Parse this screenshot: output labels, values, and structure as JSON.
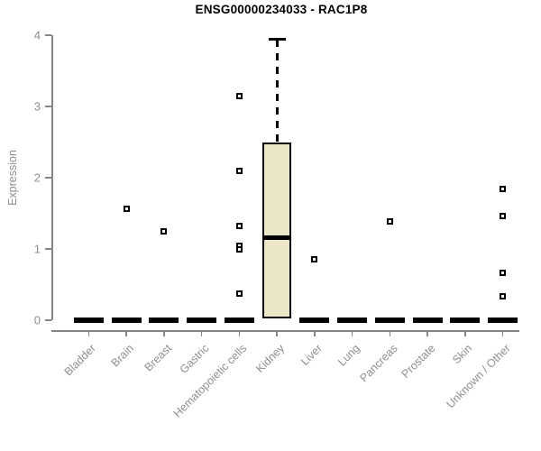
{
  "colors": {
    "background": "#ffffff",
    "box_fill": "#ECE6C8",
    "box_stroke": "#000000",
    "axis": "#868686",
    "label_text": "#8f8f8f",
    "title_text": "#000000"
  },
  "chart_data": {
    "type": "boxplot",
    "title": "ENSG00000234033 - RAC1P8",
    "xlabel": "",
    "ylabel": "Expression",
    "ylim": [
      0,
      4
    ],
    "yticks": [
      0,
      1,
      2,
      3,
      4
    ],
    "grid": "off",
    "legend": "none",
    "categories": [
      "Bladder",
      "Brain",
      "Breast",
      "Gastric",
      "Hematopoietic cells",
      "Kidney",
      "Liver",
      "Lung",
      "Pancreas",
      "Prostate",
      "Skin",
      "Unknown / Other"
    ],
    "boxes": [
      {
        "category": "Bladder",
        "q1": 0,
        "median": 0,
        "q3": 0,
        "whisker_low": 0,
        "whisker_high": 0,
        "outliers": []
      },
      {
        "category": "Brain",
        "q1": 0,
        "median": 0,
        "q3": 0,
        "whisker_low": 0,
        "whisker_high": 0,
        "outliers": [
          1.56
        ]
      },
      {
        "category": "Breast",
        "q1": 0,
        "median": 0,
        "q3": 0,
        "whisker_low": 0,
        "whisker_high": 0,
        "outliers": [
          1.25
        ]
      },
      {
        "category": "Gastric",
        "q1": 0,
        "median": 0,
        "q3": 0,
        "whisker_low": 0,
        "whisker_high": 0,
        "outliers": []
      },
      {
        "category": "Hematopoietic cells",
        "q1": 0,
        "median": 0,
        "q3": 0,
        "whisker_low": 0,
        "whisker_high": 0,
        "outliers": [
          3.15,
          2.09,
          1.32,
          1.05,
          0.99,
          0.37
        ]
      },
      {
        "category": "Kidney",
        "q1": 0.02,
        "median": 1.16,
        "q3": 2.5,
        "whisker_low": 0.02,
        "whisker_high": 3.94,
        "outliers": []
      },
      {
        "category": "Liver",
        "q1": 0,
        "median": 0,
        "q3": 0,
        "whisker_low": 0,
        "whisker_high": 0,
        "outliers": [
          0.85
        ]
      },
      {
        "category": "Lung",
        "q1": 0,
        "median": 0,
        "q3": 0,
        "whisker_low": 0,
        "whisker_high": 0,
        "outliers": []
      },
      {
        "category": "Pancreas",
        "q1": 0,
        "median": 0,
        "q3": 0,
        "whisker_low": 0,
        "whisker_high": 0,
        "outliers": [
          1.39
        ]
      },
      {
        "category": "Prostate",
        "q1": 0,
        "median": 0,
        "q3": 0,
        "whisker_low": 0,
        "whisker_high": 0,
        "outliers": []
      },
      {
        "category": "Skin",
        "q1": 0,
        "median": 0,
        "q3": 0,
        "whisker_low": 0,
        "whisker_high": 0,
        "outliers": []
      },
      {
        "category": "Unknown / Other",
        "q1": 0,
        "median": 0,
        "q3": 0,
        "whisker_low": 0,
        "whisker_high": 0,
        "outliers": [
          1.84,
          1.46,
          0.66,
          0.34
        ]
      }
    ]
  }
}
